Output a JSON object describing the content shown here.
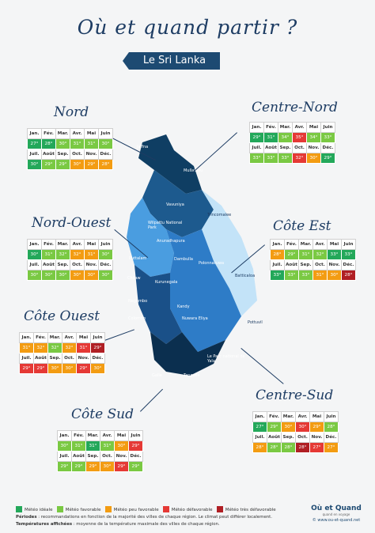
{
  "title": "Où et quand partir ?",
  "subtitle": "Le Sri Lanka",
  "months_h1": [
    "Jan.",
    "Fév.",
    "Mar.",
    "Avr.",
    "Mai",
    "Juin"
  ],
  "months_h2": [
    "Juil.",
    "Août",
    "Sep.",
    "Oct.",
    "Nov.",
    "Déc."
  ],
  "regions": {
    "nord": {
      "name": "Nord",
      "r1": [
        "27°",
        "28°",
        "30°",
        "31°",
        "31°",
        "30°"
      ],
      "r2": [
        "30°",
        "29°",
        "29°",
        "30°",
        "29°",
        "28°"
      ]
    },
    "nord_ouest": {
      "name": "Nord-Ouest",
      "r1": [
        "30°",
        "31°",
        "32°",
        "32°",
        "31°",
        "30°"
      ],
      "r2": [
        "30°",
        "30°",
        "30°",
        "30°",
        "30°",
        "30°"
      ]
    },
    "cote_ouest": {
      "name": "Côte Ouest",
      "r1": [
        "31°",
        "32°",
        "32°",
        "32°",
        "31°",
        "29°"
      ],
      "r2": [
        "29°",
        "29°",
        "30°",
        "30°",
        "29°",
        "30°"
      ]
    },
    "cote_sud": {
      "name": "Côte Sud",
      "r1": [
        "30°",
        "31°",
        "31°",
        "31°",
        "30°",
        "29°"
      ],
      "r2": [
        "29°",
        "29°",
        "29°",
        "30°",
        "29°",
        "29°"
      ]
    },
    "centre_nord": {
      "name": "Centre-Nord",
      "r1": [
        "29°",
        "31°",
        "34°",
        "35°",
        "34°",
        "33°"
      ],
      "r2": [
        "33°",
        "33°",
        "33°",
        "32°",
        "30°",
        "29°"
      ]
    },
    "cote_est": {
      "name": "Côte Est",
      "r1": [
        "28°",
        "29°",
        "31°",
        "32°",
        "33°",
        "33°"
      ],
      "r2": [
        "33°",
        "33°",
        "33°",
        "31°",
        "30°",
        "28°"
      ]
    },
    "centre_sud": {
      "name": "Centre-Sud",
      "r1": [
        "27°",
        "29°",
        "30°",
        "30°",
        "29°",
        "28°"
      ],
      "r2": [
        "28°",
        "28°",
        "28°",
        "28°",
        "27°",
        "27°"
      ]
    }
  },
  "cities": [
    "Jaffna",
    "Mullaitivu",
    "Vavuniya",
    "Wilpattu National Park",
    "Anuradhapura",
    "Trincomalee",
    "Polonnaruwa",
    "Dambulla",
    "Puttalam",
    "Kurunegala",
    "Chilaw",
    "Batticaloa",
    "Negombo",
    "Kandy",
    "Colombo",
    "Nuwara Eliya",
    "Pottuvil",
    "Le Parc national de Yala",
    "Galle",
    "Tangalle"
  ],
  "legend": [
    "Météo idéale",
    "Météo favorable",
    "Météo peu favorable",
    "Météo défavorable",
    "Météo très défavorable"
  ],
  "colors": {
    "c1": "#23a85a",
    "c2": "#7ac943",
    "c3": "#f39c12",
    "c4": "#e53935",
    "c5": "#b01f24"
  },
  "footer": {
    "periodes_label": "Périodes",
    "periodes_text": " : recommandations en fonction de la majorité des villes de chaque région. Le climat peut différer localement.",
    "temps_label": "Températures affichées",
    "temps_text": " : moyenne de la température maximale des villes de chaque région."
  },
  "logo": {
    "name": "Où et Quand",
    "tagline": "quand en voyage",
    "url": "© www.ou-et-quand.net"
  }
}
